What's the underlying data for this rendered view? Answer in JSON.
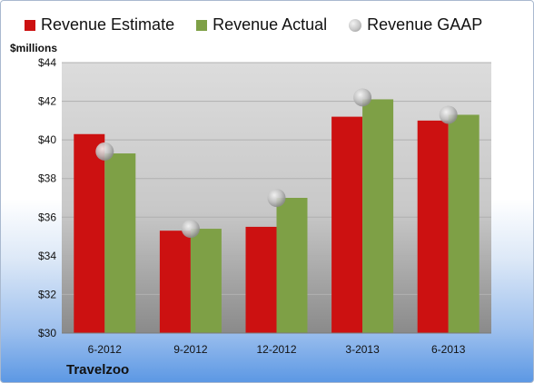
{
  "legend": {
    "estimate": "Revenue Estimate",
    "actual": "Revenue Actual",
    "gaap": "Revenue GAAP"
  },
  "units_label": "$millions",
  "company": "Travelzoo",
  "colors": {
    "estimate": "#cc1111",
    "actual": "#7ea046",
    "gaap": "#bfbfbf",
    "plot_bg_top": "#dcdcdc",
    "plot_bg_bottom": "#8a8a8a"
  },
  "chart_data": {
    "type": "bar",
    "categories": [
      "6-2012",
      "9-2012",
      "12-2012",
      "3-2013",
      "6-2013"
    ],
    "series": [
      {
        "name": "Revenue Estimate",
        "values": [
          40.3,
          35.3,
          35.5,
          41.2,
          41.0
        ]
      },
      {
        "name": "Revenue Actual",
        "values": [
          39.3,
          35.4,
          37.0,
          42.1,
          41.3
        ]
      },
      {
        "name": "Revenue GAAP",
        "values": [
          39.4,
          35.4,
          37.0,
          42.2,
          41.3
        ],
        "marker": "circle"
      }
    ],
    "ylim": [
      30,
      44
    ],
    "yticks": [
      "$30",
      "$32",
      "$34",
      "$36",
      "$38",
      "$40",
      "$42",
      "$44"
    ],
    "ylabel": "$millions",
    "grid": true,
    "legend_position": "top"
  }
}
